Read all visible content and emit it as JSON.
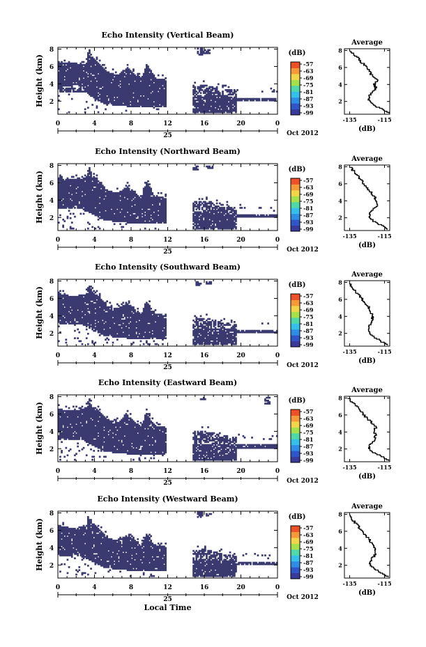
{
  "chart_data": [
    {
      "type": "heatmap",
      "title": "Echo Intensity (Vertical Beam)",
      "ylabel": "Height (km)",
      "xticks": [
        "0",
        "4",
        "8",
        "12",
        "16",
        "20",
        "0"
      ],
      "xlim": [
        0,
        24
      ],
      "yticks": [
        "2",
        "4",
        "6",
        "8"
      ],
      "ylim": [
        0.5,
        8.2
      ],
      "date_label": "25",
      "date_suffix": "Oct 2012",
      "colorbar": {
        "unit": "(dB)",
        "ticks": [
          "-57",
          "-63",
          "-69",
          "-75",
          "-81",
          "-87",
          "-93",
          "-99"
        ]
      },
      "gap_hours": [
        11.7,
        14.6
      ],
      "left_top_km": [
        [
          0.0,
          6.5
        ],
        [
          1.5,
          6.3
        ],
        [
          3.0,
          6.2
        ],
        [
          3.3,
          8.0
        ],
        [
          3.6,
          7.2
        ],
        [
          4.5,
          6.2
        ],
        [
          5.5,
          5.2
        ],
        [
          6.5,
          5.0
        ],
        [
          7.5,
          5.8
        ],
        [
          8.2,
          5.2
        ],
        [
          9.0,
          4.4
        ],
        [
          9.6,
          6.2
        ],
        [
          10.5,
          4.6
        ],
        [
          11.6,
          4.4
        ]
      ],
      "left_bottom_km": [
        [
          0.0,
          3.5
        ],
        [
          2.0,
          3.8
        ],
        [
          3.5,
          2.5
        ],
        [
          5.0,
          1.6
        ],
        [
          8.0,
          1.3
        ],
        [
          11.6,
          1.2
        ]
      ],
      "right_top_km": [
        [
          14.6,
          3.6
        ],
        [
          16.0,
          3.8
        ],
        [
          18.0,
          3.3
        ],
        [
          19.5,
          3.2
        ],
        [
          24.0,
          2.9
        ]
      ],
      "right_bottom_km": [
        [
          14.6,
          1.2
        ],
        [
          18.0,
          1.2
        ],
        [
          19.5,
          2.0
        ],
        [
          24.0,
          2.0
        ]
      ],
      "right_thin_layer_top_km": 2.3,
      "right_upper_patch": [
        [
          15.5,
          7.2,
          8.0
        ],
        [
          16.2,
          7.4,
          7.9
        ]
      ],
      "average_profile": {
        "title": "Average",
        "xlabel": "(dB)",
        "xticks": [
          "-135",
          "-115"
        ],
        "xlim": [
          -138,
          -112
        ],
        "yticks": [
          "2",
          "4",
          "6",
          "8"
        ],
        "ylim": [
          0.5,
          8.2
        ],
        "height_km": [
          0.6,
          1.0,
          1.5,
          2.0,
          2.5,
          3.0,
          3.5,
          4.0,
          4.5,
          5.0,
          5.5,
          6.0,
          6.5,
          7.0,
          7.5,
          8.0
        ],
        "db": [
          -113,
          -116,
          -121,
          -124,
          -124,
          -122,
          -120,
          -121,
          -119,
          -122,
          -124,
          -125,
          -128,
          -130,
          -133,
          -135
        ]
      }
    },
    {
      "type": "heatmap",
      "title": "Echo Intensity (Northward Beam)",
      "ylabel": "Height (km)",
      "xticks": [
        "0",
        "4",
        "8",
        "12",
        "16",
        "20",
        "0"
      ],
      "xlim": [
        0,
        24
      ],
      "yticks": [
        "2",
        "4",
        "6",
        "8"
      ],
      "ylim": [
        0.5,
        8.2
      ],
      "date_label": "25",
      "date_suffix": "Oct 2012",
      "colorbar": {
        "unit": "(dB)",
        "ticks": [
          "-57",
          "-63",
          "-69",
          "-75",
          "-81",
          "-87",
          "-93",
          "-99"
        ]
      },
      "gap_hours": [
        11.7,
        14.6
      ],
      "left_top_km": [
        [
          0.0,
          6.5
        ],
        [
          1.5,
          6.3
        ],
        [
          3.0,
          6.5
        ],
        [
          3.3,
          7.8
        ],
        [
          3.6,
          7.0
        ],
        [
          4.5,
          6.0
        ],
        [
          5.5,
          5.0
        ],
        [
          6.5,
          4.8
        ],
        [
          7.5,
          5.5
        ],
        [
          8.2,
          5.0
        ],
        [
          9.0,
          4.2
        ],
        [
          9.6,
          6.0
        ],
        [
          10.5,
          4.4
        ],
        [
          11.6,
          4.2
        ]
      ],
      "left_bottom_km": [
        [
          0.0,
          3.0
        ],
        [
          2.0,
          3.3
        ],
        [
          3.5,
          2.4
        ],
        [
          5.0,
          1.6
        ],
        [
          8.0,
          1.3
        ],
        [
          11.6,
          1.2
        ]
      ],
      "right_top_km": [
        [
          14.6,
          3.7
        ],
        [
          16.0,
          3.9
        ],
        [
          18.0,
          3.4
        ],
        [
          19.5,
          3.0
        ],
        [
          24.0,
          2.6
        ]
      ],
      "right_bottom_km": [
        [
          14.6,
          1.2
        ],
        [
          18.0,
          1.3
        ],
        [
          19.5,
          2.0
        ],
        [
          24.0,
          2.0
        ]
      ],
      "right_thin_layer_top_km": 2.2,
      "right_upper_patch": [
        [
          15.0,
          7.4,
          7.9
        ],
        [
          16.5,
          7.5,
          7.9
        ]
      ],
      "average_profile": {
        "title": "Average",
        "xlabel": "(dB)",
        "xticks": [
          "-135",
          "-115"
        ],
        "xlim": [
          -138,
          -112
        ],
        "yticks": [
          "2",
          "4",
          "6",
          "8"
        ],
        "ylim": [
          0.5,
          8.2
        ],
        "height_km": [
          0.6,
          1.0,
          1.5,
          2.0,
          2.5,
          3.0,
          3.5,
          4.0,
          4.5,
          5.0,
          5.5,
          6.0,
          6.5,
          7.0,
          7.5,
          8.0
        ],
        "db": [
          -113,
          -116,
          -121,
          -124,
          -123,
          -121,
          -119,
          -120,
          -121,
          -123,
          -125,
          -127,
          -129,
          -131,
          -133,
          -135
        ]
      }
    },
    {
      "type": "heatmap",
      "title": "Echo Intensity (Southward Beam)",
      "ylabel": "Height (km)",
      "xticks": [
        "0",
        "4",
        "8",
        "12",
        "16",
        "20",
        "0"
      ],
      "xlim": [
        0,
        24
      ],
      "yticks": [
        "2",
        "4",
        "6",
        "8"
      ],
      "ylim": [
        0.5,
        8.2
      ],
      "date_label": "25",
      "date_suffix": "Oct 2012",
      "colorbar": {
        "unit": "(dB)",
        "ticks": [
          "-57",
          "-63",
          "-69",
          "-75",
          "-81",
          "-87",
          "-93",
          "-99"
        ]
      },
      "gap_hours": [
        11.7,
        14.6
      ],
      "left_top_km": [
        [
          0.0,
          6.5
        ],
        [
          1.5,
          6.2
        ],
        [
          3.0,
          6.4
        ],
        [
          3.3,
          7.5
        ],
        [
          3.6,
          6.8
        ],
        [
          4.5,
          6.0
        ],
        [
          5.5,
          5.0
        ],
        [
          6.5,
          4.8
        ],
        [
          7.5,
          5.4
        ],
        [
          8.2,
          4.8
        ],
        [
          9.0,
          4.2
        ],
        [
          9.6,
          5.6
        ],
        [
          10.5,
          4.2
        ],
        [
          11.6,
          4.0
        ]
      ],
      "left_bottom_km": [
        [
          0.0,
          3.0
        ],
        [
          2.0,
          3.2
        ],
        [
          3.5,
          2.4
        ],
        [
          5.0,
          1.6
        ],
        [
          8.0,
          1.3
        ],
        [
          11.6,
          1.2
        ]
      ],
      "right_top_km": [
        [
          14.6,
          3.5
        ],
        [
          16.0,
          3.7
        ],
        [
          18.0,
          3.2
        ],
        [
          19.5,
          2.9
        ],
        [
          24.0,
          2.6
        ]
      ],
      "right_bottom_km": [
        [
          14.6,
          1.2
        ],
        [
          18.0,
          1.3
        ],
        [
          19.5,
          2.0
        ],
        [
          24.0,
          2.0
        ]
      ],
      "right_thin_layer_top_km": 2.2,
      "right_upper_patch": [
        [
          15.3,
          7.4,
          7.9
        ],
        [
          16.4,
          7.5,
          7.9
        ]
      ],
      "average_profile": {
        "title": "Average",
        "xlabel": "(dB)",
        "xticks": [
          "-135",
          "-115"
        ],
        "xlim": [
          -138,
          -112
        ],
        "yticks": [
          "2",
          "4",
          "6",
          "8"
        ],
        "ylim": [
          0.5,
          8.2
        ],
        "height_km": [
          0.6,
          1.0,
          1.5,
          2.0,
          2.5,
          3.0,
          3.5,
          4.0,
          4.5,
          5.0,
          5.5,
          6.0,
          6.5,
          7.0,
          7.5,
          8.0
        ],
        "db": [
          -113,
          -117,
          -121,
          -124,
          -124,
          -123,
          -122,
          -122,
          -123,
          -124,
          -126,
          -128,
          -130,
          -132,
          -134,
          -135
        ]
      }
    },
    {
      "type": "heatmap",
      "title": "Echo Intensity (Eastward Beam)",
      "ylabel": "Height (km)",
      "xticks": [
        "0",
        "4",
        "8",
        "12",
        "16",
        "20",
        "0"
      ],
      "xlim": [
        0,
        24
      ],
      "yticks": [
        "2",
        "4",
        "6",
        "8"
      ],
      "ylim": [
        0.5,
        8.2
      ],
      "date_label": "25",
      "date_suffix": "Oct 2012",
      "colorbar": {
        "unit": "(dB)",
        "ticks": [
          "-57",
          "-63",
          "-69",
          "-75",
          "-81",
          "-87",
          "-93",
          "-99"
        ]
      },
      "gap_hours": [
        11.7,
        14.6
      ],
      "left_top_km": [
        [
          0.0,
          6.5
        ],
        [
          1.5,
          6.3
        ],
        [
          3.0,
          6.6
        ],
        [
          3.3,
          7.9
        ],
        [
          3.6,
          7.0
        ],
        [
          4.5,
          6.2
        ],
        [
          5.5,
          5.2
        ],
        [
          6.5,
          5.0
        ],
        [
          7.5,
          5.8
        ],
        [
          8.2,
          5.2
        ],
        [
          9.0,
          4.4
        ],
        [
          9.6,
          6.0
        ],
        [
          10.5,
          4.6
        ],
        [
          11.6,
          4.4
        ]
      ],
      "left_bottom_km": [
        [
          0.0,
          3.0
        ],
        [
          2.0,
          3.4
        ],
        [
          3.5,
          2.4
        ],
        [
          5.0,
          1.6
        ],
        [
          8.0,
          1.3
        ],
        [
          11.6,
          1.2
        ]
      ],
      "right_top_km": [
        [
          14.6,
          3.9
        ],
        [
          16.0,
          4.0
        ],
        [
          18.0,
          3.5
        ],
        [
          19.5,
          3.2
        ],
        [
          24.0,
          2.9
        ]
      ],
      "right_bottom_km": [
        [
          14.6,
          1.2
        ],
        [
          18.0,
          1.4
        ],
        [
          19.5,
          2.0
        ],
        [
          24.0,
          2.0
        ]
      ],
      "right_thin_layer_top_km": 2.4,
      "right_upper_patch": [
        [
          15.8,
          7.5,
          7.9
        ],
        [
          22.8,
          7.0,
          7.9
        ]
      ],
      "average_profile": {
        "title": "Average",
        "xlabel": "(dB)",
        "xticks": [
          "-135",
          "-115"
        ],
        "xlim": [
          -138,
          -112
        ],
        "yticks": [
          "2",
          "4",
          "6",
          "8"
        ],
        "ylim": [
          0.5,
          8.2
        ],
        "height_km": [
          0.6,
          1.0,
          1.5,
          2.0,
          2.5,
          3.0,
          3.5,
          4.0,
          4.5,
          5.0,
          5.5,
          6.0,
          6.5,
          7.0,
          7.5,
          8.0
        ],
        "db": [
          -113,
          -116,
          -121,
          -124,
          -123,
          -121,
          -120,
          -121,
          -120,
          -122,
          -125,
          -127,
          -129,
          -131,
          -134,
          -136
        ]
      }
    },
    {
      "type": "heatmap",
      "title": "Echo Intensity (Westward Beam)",
      "ylabel": "Height (km)",
      "xticks": [
        "0",
        "4",
        "8",
        "12",
        "16",
        "20",
        "0"
      ],
      "xlim": [
        0,
        24
      ],
      "yticks": [
        "2",
        "4",
        "6",
        "8"
      ],
      "ylim": [
        0.5,
        8.2
      ],
      "date_label": "25",
      "date_suffix": "Oct 2012",
      "xlabel": "Local Time",
      "colorbar": {
        "unit": "(dB)",
        "ticks": [
          "-57",
          "-63",
          "-69",
          "-75",
          "-81",
          "-87",
          "-93",
          "-99"
        ]
      },
      "gap_hours": [
        11.7,
        14.6
      ],
      "left_top_km": [
        [
          0.0,
          6.5
        ],
        [
          1.5,
          6.2
        ],
        [
          3.0,
          6.4
        ],
        [
          3.3,
          7.5
        ],
        [
          3.6,
          6.8
        ],
        [
          4.5,
          6.0
        ],
        [
          5.5,
          5.0
        ],
        [
          6.5,
          4.8
        ],
        [
          7.5,
          5.4
        ],
        [
          8.2,
          4.8
        ],
        [
          9.0,
          4.2
        ],
        [
          9.6,
          5.6
        ],
        [
          10.5,
          4.2
        ],
        [
          11.6,
          4.0
        ]
      ],
      "left_bottom_km": [
        [
          0.0,
          3.0
        ],
        [
          2.0,
          3.2
        ],
        [
          3.5,
          2.4
        ],
        [
          5.0,
          1.6
        ],
        [
          8.0,
          1.3
        ],
        [
          11.6,
          1.2
        ]
      ],
      "right_top_km": [
        [
          14.6,
          3.5
        ],
        [
          16.0,
          3.8
        ],
        [
          18.0,
          3.2
        ],
        [
          19.5,
          2.9
        ],
        [
          24.0,
          2.5
        ]
      ],
      "right_bottom_km": [
        [
          14.6,
          1.2
        ],
        [
          18.0,
          1.3
        ],
        [
          19.5,
          2.0
        ],
        [
          24.0,
          2.0
        ]
      ],
      "right_thin_layer_top_km": 2.2,
      "right_upper_patch": [
        [
          15.4,
          7.3,
          8.0
        ],
        [
          16.4,
          7.5,
          7.9
        ]
      ],
      "average_profile": {
        "title": "Average",
        "xlabel": "(dB)",
        "xticks": [
          "-135",
          "-115"
        ],
        "xlim": [
          -138,
          -112
        ],
        "yticks": [
          "2",
          "4",
          "6",
          "8"
        ],
        "ylim": [
          0.5,
          8.2
        ],
        "height_km": [
          0.6,
          1.0,
          1.5,
          2.0,
          2.5,
          3.0,
          3.5,
          4.0,
          4.5,
          5.0,
          5.5,
          6.0,
          6.5,
          7.0,
          7.5,
          8.0
        ],
        "db": [
          -113,
          -116,
          -121,
          -123,
          -123,
          -121,
          -120,
          -121,
          -122,
          -124,
          -126,
          -128,
          -130,
          -132,
          -134,
          -135
        ]
      }
    }
  ],
  "colors": {
    "echo": "#3a3a70",
    "colorbar": [
      "#3a3a9a",
      "#2f55c8",
      "#2e8ee6",
      "#34c0e8",
      "#4fd8a8",
      "#a6e04a",
      "#f2d64a",
      "#f59a38",
      "#ee5028"
    ]
  }
}
